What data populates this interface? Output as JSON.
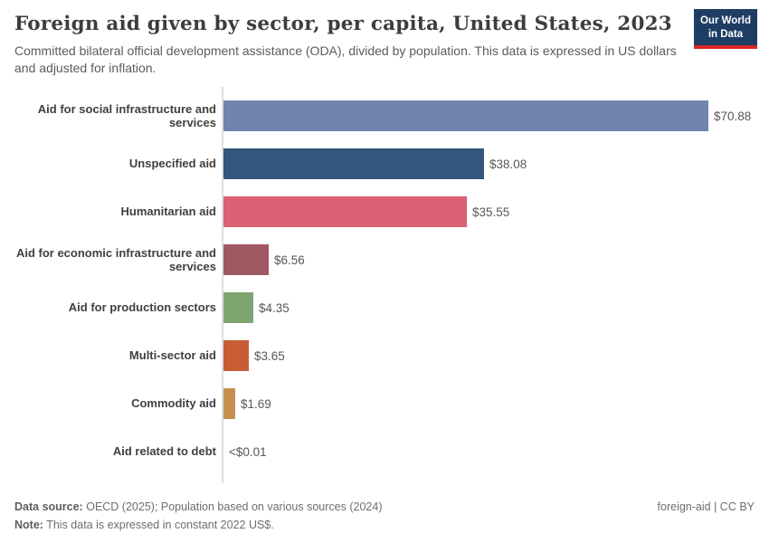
{
  "header": {
    "title": "Foreign aid given by sector, per capita, United States, 2023",
    "subtitle": "Committed bilateral official development assistance (ODA), divided by population. This data is expressed in US dollars and adjusted for inflation.",
    "logo": {
      "line1": "Our World",
      "line2": "in Data"
    }
  },
  "chart_data": {
    "type": "bar",
    "orientation": "horizontal",
    "title": "Foreign aid given by sector, per capita, United States, 2023",
    "categories": [
      "Aid for social infrastructure and services",
      "Unspecified aid",
      "Humanitarian aid",
      "Aid for economic infrastructure and services",
      "Aid for production sectors",
      "Multi-sector aid",
      "Commodity aid",
      "Aid related to debt"
    ],
    "values": [
      70.88,
      38.08,
      35.55,
      6.56,
      4.35,
      3.65,
      1.69,
      0.005
    ],
    "value_labels": [
      "$70.88",
      "$38.08",
      "$35.55",
      "$6.56",
      "$4.35",
      "$3.65",
      "$1.69",
      "<$0.01"
    ],
    "bar_colors": [
      "#7085ad",
      "#33567c",
      "#dd6075",
      "#a05862",
      "#7ea46f",
      "#c75c35",
      "#c5904d",
      "#c5904d"
    ],
    "xlim": [
      0,
      75
    ],
    "grid": "off",
    "legend": "none"
  },
  "footer": {
    "source_label": "Data source:",
    "source_text": "OECD (2025); Population based on various sources (2024)",
    "note_label": "Note:",
    "note_text": "This data is expressed in constant 2022 US$.",
    "license": "foreign-aid | CC BY"
  }
}
